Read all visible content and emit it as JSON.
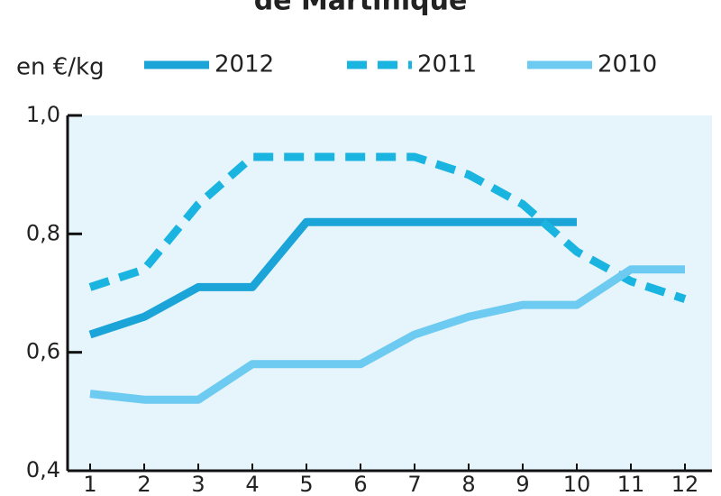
{
  "chart_data": {
    "type": "line",
    "title": "de Martinique",
    "y_label": "en €/kg",
    "categories": [
      "1",
      "2",
      "3",
      "4",
      "5",
      "6",
      "7",
      "8",
      "9",
      "10",
      "11",
      "12"
    ],
    "series": [
      {
        "name": "2012",
        "color": "#1ba4d8",
        "dashed": false,
        "values": [
          0.63,
          0.66,
          0.71,
          0.71,
          0.82,
          0.82,
          0.82,
          0.82,
          0.82,
          0.82,
          null,
          null
        ]
      },
      {
        "name": "2011",
        "color": "#1ab4e0",
        "dashed": true,
        "values": [
          0.71,
          0.74,
          0.85,
          0.93,
          0.93,
          0.93,
          0.93,
          0.9,
          0.85,
          0.77,
          0.72,
          0.69
        ]
      },
      {
        "name": "2010",
        "color": "#6dcaf0",
        "dashed": false,
        "values": [
          0.53,
          0.52,
          0.52,
          0.58,
          0.58,
          0.58,
          0.63,
          0.66,
          0.68,
          0.68,
          0.74,
          0.74
        ]
      }
    ],
    "ylim": [
      0.4,
      1.0
    ],
    "yticks": [
      {
        "value": 0.4,
        "label": "0,4"
      },
      {
        "value": 0.6,
        "label": "0,6"
      },
      {
        "value": 0.8,
        "label": "0,8"
      },
      {
        "value": 1.0,
        "label": "1,0"
      }
    ],
    "plot_background": "#e6f5fc"
  }
}
